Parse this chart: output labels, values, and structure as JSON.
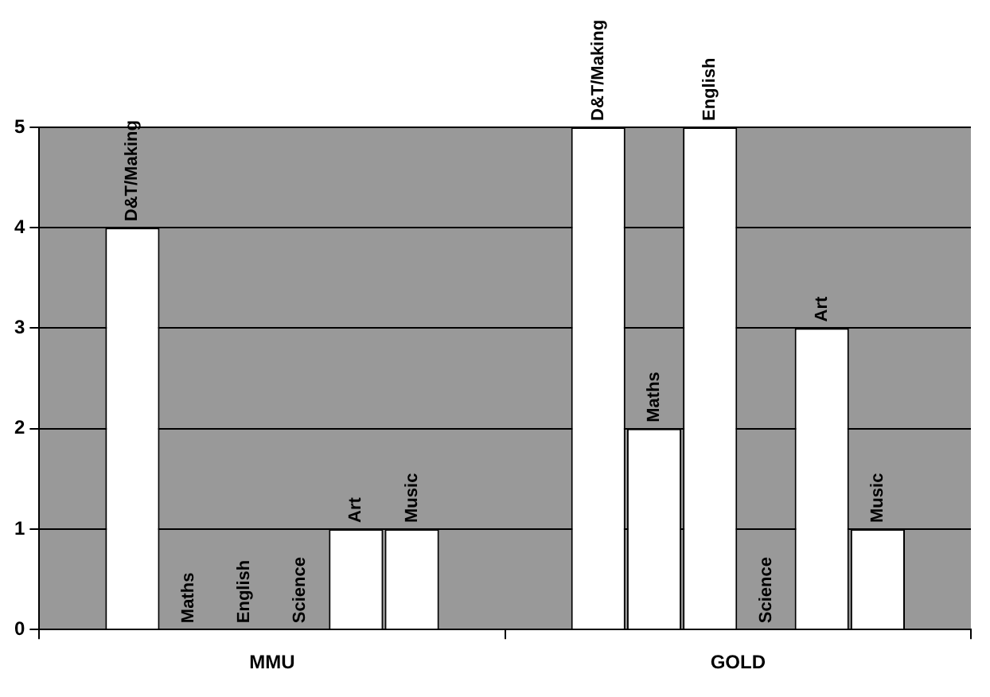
{
  "chart_data": {
    "type": "bar",
    "categories": [
      "MMU",
      "GOLD"
    ],
    "series": [
      {
        "name": "D&T/Making",
        "color": "#ffffff",
        "values": [
          4,
          5
        ]
      },
      {
        "name": "Maths",
        "color": "#ffffff",
        "values": [
          0,
          2
        ]
      },
      {
        "name": "English",
        "color": "#ffffff",
        "values": [
          0,
          5
        ]
      },
      {
        "name": "Science",
        "values": [
          0,
          0
        ]
      },
      {
        "name": "Art",
        "color": "#ffffff",
        "values": [
          1,
          3
        ]
      },
      {
        "name": "Music",
        "color": "#ffffff",
        "values": [
          1,
          1
        ]
      }
    ],
    "ylim": [
      0,
      5
    ],
    "yticks": [
      0,
      1,
      2,
      3,
      4,
      5
    ],
    "grid": "y",
    "legend": false
  }
}
